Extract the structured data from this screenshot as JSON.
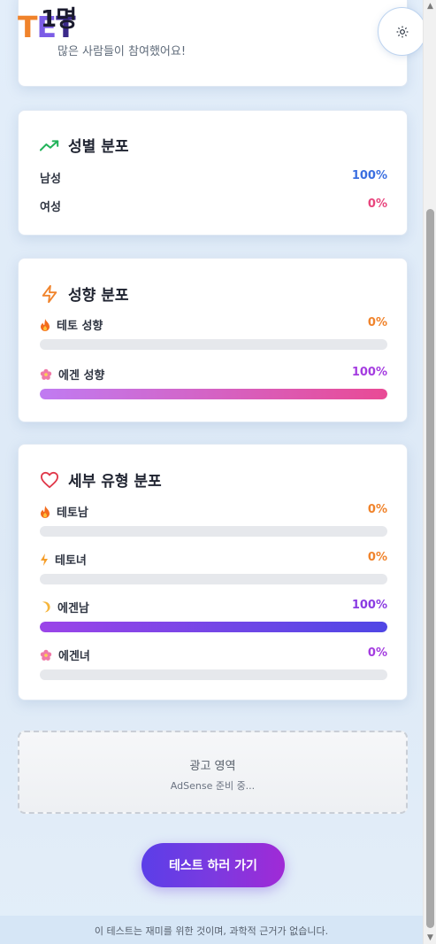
{
  "header": {
    "logo_letters": [
      "T",
      "E",
      "T"
    ],
    "count_text": "1명",
    "participants_text": "많은 사람들이 참여했어요!",
    "theme_icon": "sun-icon"
  },
  "gender": {
    "title": "성별 분포",
    "icon": "trending-up-icon",
    "rows": [
      {
        "label": "남성",
        "value": "100%",
        "color": "#3b6fe0"
      },
      {
        "label": "여성",
        "value": "0%",
        "color": "#e8457d"
      }
    ]
  },
  "tendency": {
    "title": "성향 분포",
    "icon": "lightning-icon",
    "rows": [
      {
        "label": "테토 성향",
        "value": "0%",
        "percent": 0,
        "icon": "fire-icon",
        "color": "#f0832b",
        "gradient": "linear-gradient(90deg,#f59e4b,#ef6a2b)"
      },
      {
        "label": "에겐 성향",
        "value": "100%",
        "percent": 100,
        "icon": "flower-icon",
        "color": "#a43ce0",
        "gradient": "linear-gradient(90deg,#c07bf2,#e94a95)"
      }
    ]
  },
  "detail": {
    "title": "세부 유형 분포",
    "icon": "heart-icon",
    "rows": [
      {
        "label": "테토남",
        "value": "0%",
        "percent": 0,
        "icon": "fire-icon",
        "color": "#f0832b",
        "gradient": "linear-gradient(90deg,#f59e4b,#ef6a2b)"
      },
      {
        "label": "테토녀",
        "value": "0%",
        "percent": 0,
        "icon": "bolt-small-icon",
        "color": "#f0832b",
        "gradient": "linear-gradient(90deg,#f59e4b,#ef6a2b)"
      },
      {
        "label": "에겐남",
        "value": "100%",
        "percent": 100,
        "icon": "moon-icon",
        "color": "#8a3be2",
        "gradient": "linear-gradient(90deg,#9b45e8,#4f46e5)"
      },
      {
        "label": "에겐녀",
        "value": "0%",
        "percent": 0,
        "icon": "flower-icon",
        "color": "#a43ce0",
        "gradient": "linear-gradient(90deg,#c07bf2,#e94a95)"
      }
    ]
  },
  "ad": {
    "title": "광고 영역",
    "subtitle": "AdSense 준비 중..."
  },
  "cta": {
    "label": "테스트 하러 가기"
  },
  "footer": {
    "text": "이 테스트는 재미를 위한 것이며, 과학적 근거가 없습니다."
  }
}
